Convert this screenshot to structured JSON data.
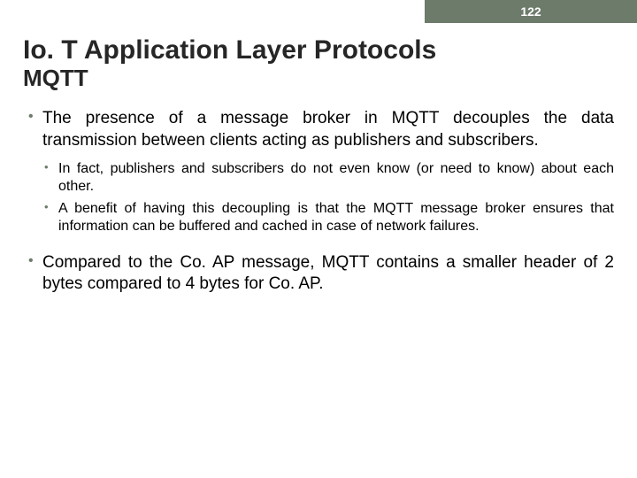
{
  "header": {
    "page_number": "122",
    "bar_color": "#6d7b6a",
    "text_color": "#ffffff"
  },
  "title": "Io. T Application Layer Protocols",
  "subtitle": "MQTT",
  "bullets": [
    {
      "text": "The presence of a message broker in MQTT decouples the data transmission between clients acting as publishers and subscribers.",
      "sub": [
        "In fact, publishers and subscribers do not even know (or need to know) about each other.",
        "A benefit of having this decoupling is that the MQTT message broker ensures that information can be buffered and cached in case of network failures."
      ]
    },
    {
      "text": "Compared to the Co. AP message, MQTT contains a smaller header of 2 bytes compared to 4 bytes for Co. AP.",
      "sub": []
    }
  ],
  "styles": {
    "title_fontsize": 30,
    "subtitle_fontsize": 26,
    "bullet_main_fontsize": 19,
    "bullet_sub_fontsize": 16,
    "bullet_marker_color": "#6d7b6a",
    "text_color": "#000000",
    "background_color": "#ffffff"
  }
}
